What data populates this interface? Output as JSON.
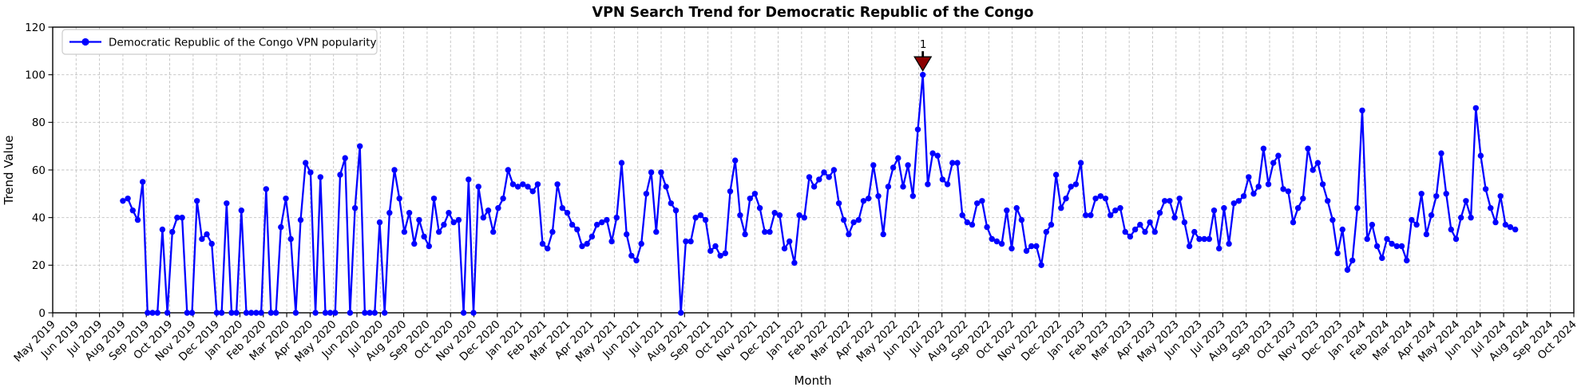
{
  "chart_data": {
    "type": "line",
    "title": "VPN Search Trend for Democratic Republic of the Congo",
    "xlabel": "Month",
    "ylabel": "Trend Value",
    "ylim": [
      0,
      120
    ],
    "yticks": [
      0,
      20,
      40,
      60,
      80,
      100,
      120
    ],
    "x_tick_labels": [
      "May 2019",
      "Jun 2019",
      "Jul 2019",
      "Aug 2019",
      "Sep 2019",
      "Oct 2019",
      "Nov 2019",
      "Dec 2019",
      "Jan 2020",
      "Feb 2020",
      "Mar 2020",
      "Apr 2020",
      "May 2020",
      "Jun 2020",
      "Jul 2020",
      "Aug 2020",
      "Sep 2020",
      "Oct 2020",
      "Nov 2020",
      "Dec 2020",
      "Jan 2021",
      "Feb 2021",
      "Mar 2021",
      "Apr 2021",
      "May 2021",
      "Jun 2021",
      "Jul 2021",
      "Aug 2021",
      "Sep 2021",
      "Oct 2021",
      "Nov 2021",
      "Dec 2021",
      "Jan 2022",
      "Feb 2022",
      "Mar 2022",
      "Apr 2022",
      "May 2022",
      "Jun 2022",
      "Jul 2022",
      "Aug 2022",
      "Sep 2022",
      "Oct 2022",
      "Nov 2022",
      "Dec 2022",
      "Jan 2023",
      "Feb 2023",
      "Mar 2023",
      "Apr 2023",
      "May 2023",
      "Jun 2023",
      "Jul 2023",
      "Aug 2023",
      "Sep 2023",
      "Oct 2023",
      "Nov 2023",
      "Dec 2023",
      "Jan 2024",
      "Feb 2024",
      "Mar 2024",
      "Apr 2024",
      "May 2024",
      "Jun 2024",
      "Jul 2024",
      "Aug 2024",
      "Sep 2024",
      "Oct 2024"
    ],
    "series": [
      {
        "name": "Democratic Republic of the Congo VPN popularity",
        "color": "#0000ff",
        "marker": "circle",
        "values": [
          47,
          48,
          43,
          39,
          55,
          0,
          0,
          0,
          35,
          0,
          34,
          40,
          40,
          0,
          0,
          47,
          31,
          33,
          29,
          0,
          0,
          46,
          0,
          0,
          43,
          0,
          0,
          0,
          0,
          52,
          0,
          0,
          36,
          48,
          31,
          0,
          39,
          63,
          59,
          0,
          57,
          0,
          0,
          0,
          58,
          65,
          0,
          44,
          70,
          0,
          0,
          0,
          38,
          0,
          42,
          60,
          48,
          34,
          42,
          29,
          39,
          32,
          28,
          48,
          34,
          37,
          42,
          38,
          39,
          0,
          56,
          0,
          53,
          40,
          43,
          34,
          44,
          48,
          60,
          54,
          53,
          54,
          53,
          51,
          54,
          29,
          27,
          34,
          54,
          44,
          42,
          37,
          35,
          28,
          29,
          32,
          37,
          38,
          39,
          30,
          40,
          63,
          33,
          24,
          22,
          29,
          50,
          59,
          34,
          59,
          53,
          46,
          43,
          0,
          30,
          30,
          40,
          41,
          39,
          26,
          28,
          24,
          25,
          51,
          64,
          41,
          33,
          48,
          50,
          44,
          34,
          34,
          42,
          41,
          27,
          30,
          21,
          41,
          40,
          57,
          53,
          56,
          59,
          57,
          60,
          46,
          39,
          33,
          38,
          39,
          47,
          48,
          62,
          49,
          33,
          53,
          61,
          65,
          53,
          62,
          49,
          77,
          100,
          54,
          67,
          66,
          56,
          54,
          63,
          63,
          41,
          38,
          37,
          46,
          47,
          36,
          31,
          30,
          29,
          43,
          27,
          44,
          39,
          26,
          28,
          28,
          20,
          34,
          37,
          58,
          44,
          48,
          53,
          54,
          63,
          41,
          41,
          48,
          49,
          48,
          41,
          43,
          44,
          34,
          32,
          35,
          37,
          34,
          38,
          34,
          42,
          47,
          47,
          40,
          48,
          38,
          28,
          34,
          31,
          31,
          31,
          43,
          27,
          44,
          29,
          46,
          47,
          49,
          57,
          50,
          53,
          69,
          54,
          63,
          66,
          52,
          51,
          38,
          44,
          48,
          69,
          60,
          63,
          54,
          47,
          39,
          25,
          35,
          18,
          22,
          44,
          85,
          31,
          37,
          28,
          23,
          31,
          29,
          28,
          28,
          22,
          39,
          37,
          50,
          33,
          41,
          49,
          67,
          50,
          35,
          31,
          40,
          47,
          40,
          86,
          66,
          52,
          44,
          38,
          49,
          37,
          36,
          35
        ]
      }
    ],
    "annotations": [
      {
        "label": "1",
        "point_index": 162,
        "value": 100,
        "color": "#8b0000",
        "marker": "triangle-down"
      }
    ],
    "legend": {
      "position": "upper left"
    },
    "layout": {
      "grid": true,
      "grid_style": "dashed",
      "grid_color": "#c0c0c0",
      "background": "#ffffff",
      "data_start_month_index": 3.0,
      "data_end_month_index": 62.5
    }
  }
}
